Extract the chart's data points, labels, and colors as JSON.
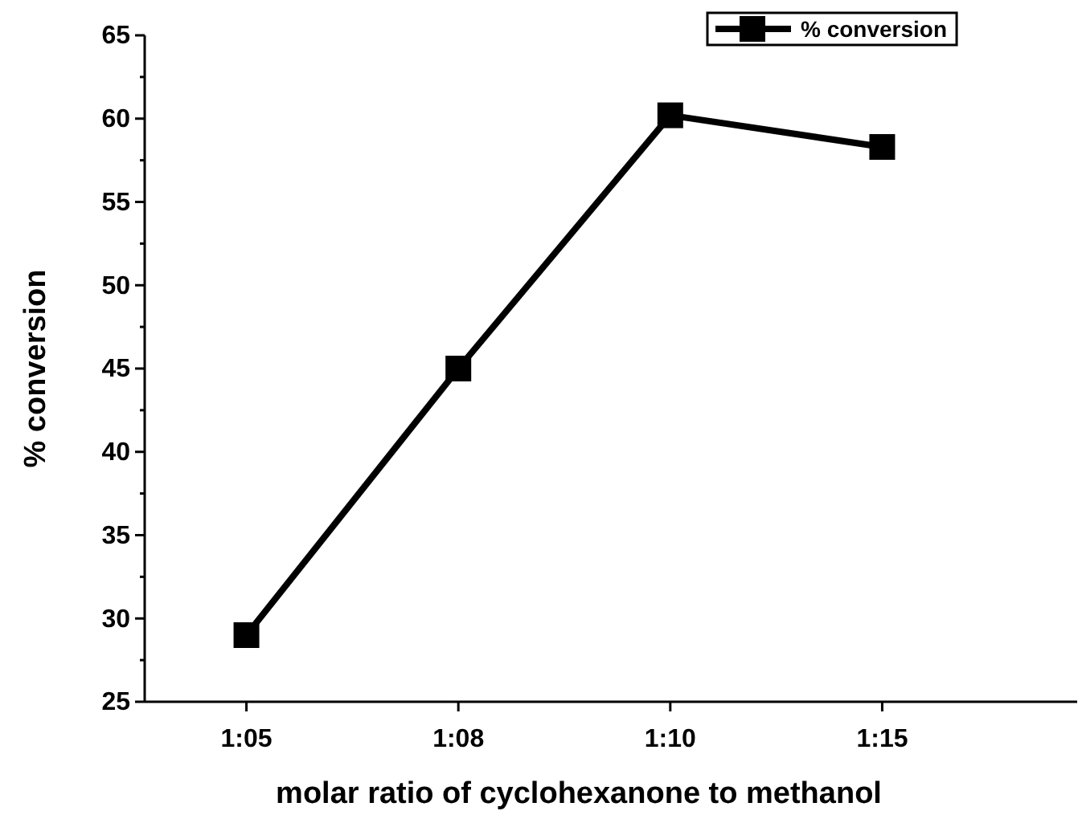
{
  "chart_data": {
    "type": "line",
    "xlabel": "molar ratio of cyclohexanone to methanol",
    "ylabel": "% conversion",
    "categories": [
      "1:05",
      "1:08",
      "1:10",
      "1:15"
    ],
    "series": [
      {
        "name": "% conversion",
        "color": "#000000",
        "values": [
          29,
          45,
          60.2,
          58.3
        ]
      }
    ],
    "ylim": [
      25,
      65
    ],
    "yticks": [
      25,
      {
        "value": 27.5,
        "label": null
      },
      30,
      {
        "value": 32.5,
        "label": null
      },
      35,
      {
        "value": 37.5,
        "label": null
      },
      40,
      {
        "value": 42.5,
        "label": null
      },
      45,
      {
        "value": 47.5,
        "label": null
      },
      50,
      {
        "value": 52.5,
        "label": null
      },
      55,
      {
        "value": 57.5,
        "label": null
      },
      60,
      {
        "value": 62.5,
        "label": null
      },
      65
    ],
    "legend": "top right",
    "marker": "square",
    "line_style": "solid"
  }
}
